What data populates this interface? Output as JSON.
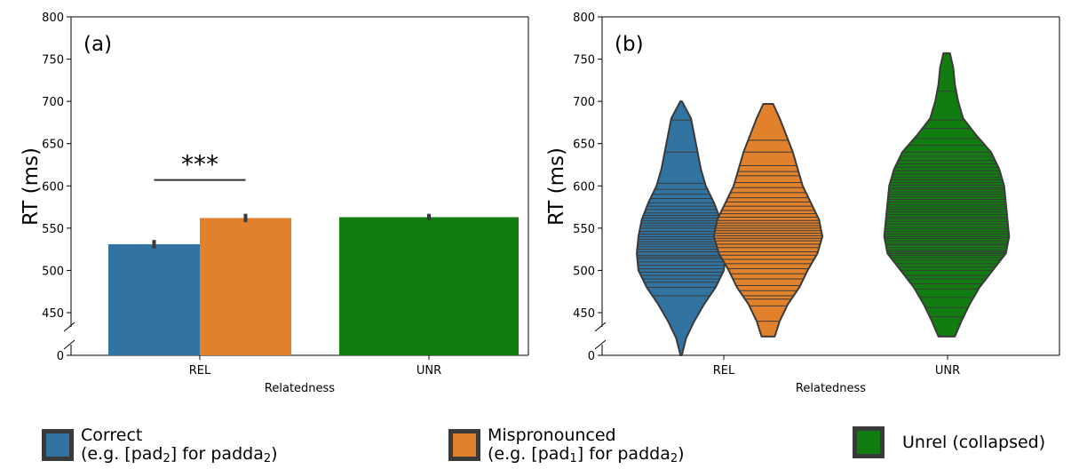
{
  "figure": {
    "ylabel": "RT (ms)",
    "xlabel": "Relatedness",
    "categories": [
      "REL",
      "UNR"
    ],
    "yticks": [
      0,
      450,
      500,
      550,
      600,
      650,
      700,
      750,
      800
    ],
    "colors": {
      "correct": "#3274a1",
      "mispronounced": "#e1812c",
      "unrel": "#117d11",
      "edge": "#3a3a3a"
    }
  },
  "chart_data": [
    {
      "type": "bar",
      "panel_label": "(a)",
      "xlabel": "Relatedness",
      "ylabel": "RT (ms)",
      "categories": [
        "REL",
        "UNR"
      ],
      "ylim": [
        0,
        800
      ],
      "axis_break": "between 0 and 450",
      "series": [
        {
          "key": "correct",
          "values": [
            531,
            null
          ],
          "error": [
            [
              526,
              536
            ],
            null
          ]
        },
        {
          "key": "mispronounced",
          "values": [
            562,
            null
          ],
          "error": [
            [
              557,
              567
            ],
            null
          ]
        },
        {
          "key": "unrel",
          "values": [
            null,
            563
          ],
          "error": [
            null,
            [
              559,
              567
            ]
          ]
        }
      ],
      "significance": {
        "label": "***",
        "y": 607,
        "between": [
          "correct",
          "mispronounced"
        ],
        "category": "REL"
      }
    },
    {
      "type": "violin",
      "panel_label": "(b)",
      "xlabel": "Relatedness",
      "ylabel": "RT (ms)",
      "categories": [
        "REL",
        "UNR"
      ],
      "ylim": [
        0,
        800
      ],
      "axis_break": "between 0 and 450",
      "series": [
        {
          "key": "correct",
          "category": "REL",
          "profile": [
            [
              400,
              0.4
            ],
            [
              420,
              3
            ],
            [
              440,
              8
            ],
            [
              460,
              14
            ],
            [
              480,
              21
            ],
            [
              500,
              26
            ],
            [
              520,
              27
            ],
            [
              540,
              26
            ],
            [
              560,
              24
            ],
            [
              580,
              20
            ],
            [
              600,
              15
            ],
            [
              620,
              12
            ],
            [
              640,
              10
            ],
            [
              660,
              8
            ],
            [
              680,
              6
            ],
            [
              700,
              0.5
            ]
          ],
          "observations": [
            470,
            480,
            486,
            490,
            494,
            498,
            502,
            506,
            510,
            514,
            516,
            518,
            522,
            525,
            528,
            531,
            534,
            537,
            540,
            543,
            546,
            550,
            553,
            556,
            559,
            562,
            565,
            568,
            572,
            576,
            580,
            585,
            590,
            596,
            603,
            640,
            678
          ]
        },
        {
          "key": "mispronounced",
          "category": "REL",
          "profile": [
            [
              422,
              4
            ],
            [
              440,
              7
            ],
            [
              460,
              12
            ],
            [
              480,
              19
            ],
            [
              500,
              24
            ],
            [
              520,
              30
            ],
            [
              540,
              33
            ],
            [
              560,
              31
            ],
            [
              580,
              26
            ],
            [
              600,
              21
            ],
            [
              620,
              18
            ],
            [
              640,
              15
            ],
            [
              660,
              11
            ],
            [
              680,
              7
            ],
            [
              697,
              3
            ]
          ],
          "observations": [
            440,
            458,
            466,
            470,
            476,
            482,
            490,
            496,
            502,
            508,
            513,
            518,
            522,
            527,
            531,
            535,
            538,
            541,
            544,
            547,
            550,
            553,
            556,
            559,
            563,
            567,
            571,
            576,
            581,
            586,
            592,
            598,
            604,
            612,
            617,
            624,
            640,
            654
          ]
        },
        {
          "key": "unrel",
          "category": "UNR",
          "profile": [
            [
              422,
              5
            ],
            [
              440,
              9
            ],
            [
              460,
              14
            ],
            [
              480,
              20
            ],
            [
              500,
              28
            ],
            [
              520,
              36
            ],
            [
              540,
              38
            ],
            [
              560,
              37
            ],
            [
              580,
              36
            ],
            [
              600,
              35
            ],
            [
              620,
              32
            ],
            [
              640,
              27
            ],
            [
              660,
              18
            ],
            [
              680,
              10
            ],
            [
              700,
              7
            ],
            [
              720,
              5
            ],
            [
              740,
              4
            ],
            [
              757,
              2
            ]
          ],
          "observations": [
            445,
            456,
            468,
            478,
            484,
            490,
            494,
            500,
            504,
            508,
            512,
            515,
            518,
            520,
            522,
            524,
            527,
            530,
            532,
            535,
            538,
            540,
            543,
            546,
            549,
            552,
            555,
            558,
            561,
            563,
            566,
            569,
            572,
            575,
            578,
            581,
            584,
            587,
            590,
            593,
            596,
            598,
            601,
            604,
            607,
            610,
            614,
            618,
            622,
            626,
            630,
            635,
            640,
            648,
            656,
            668,
            678,
            712
          ]
        }
      ]
    }
  ],
  "legend": [
    {
      "key": "correct",
      "line1": "Correct",
      "line2_pre": "(e.g. [pad",
      "line2_sub1": "2",
      "line2_mid": "] for padda",
      "line2_sub2": "2",
      "line2_post": ")"
    },
    {
      "key": "mispronounced",
      "line1": "Mispronounced",
      "line2_pre": "(e.g. [pad",
      "line2_sub1": "1",
      "line2_mid": "] for padda",
      "line2_sub2": "2",
      "line2_post": ")"
    },
    {
      "key": "unrel",
      "line1": "Unrel (collapsed)"
    }
  ]
}
